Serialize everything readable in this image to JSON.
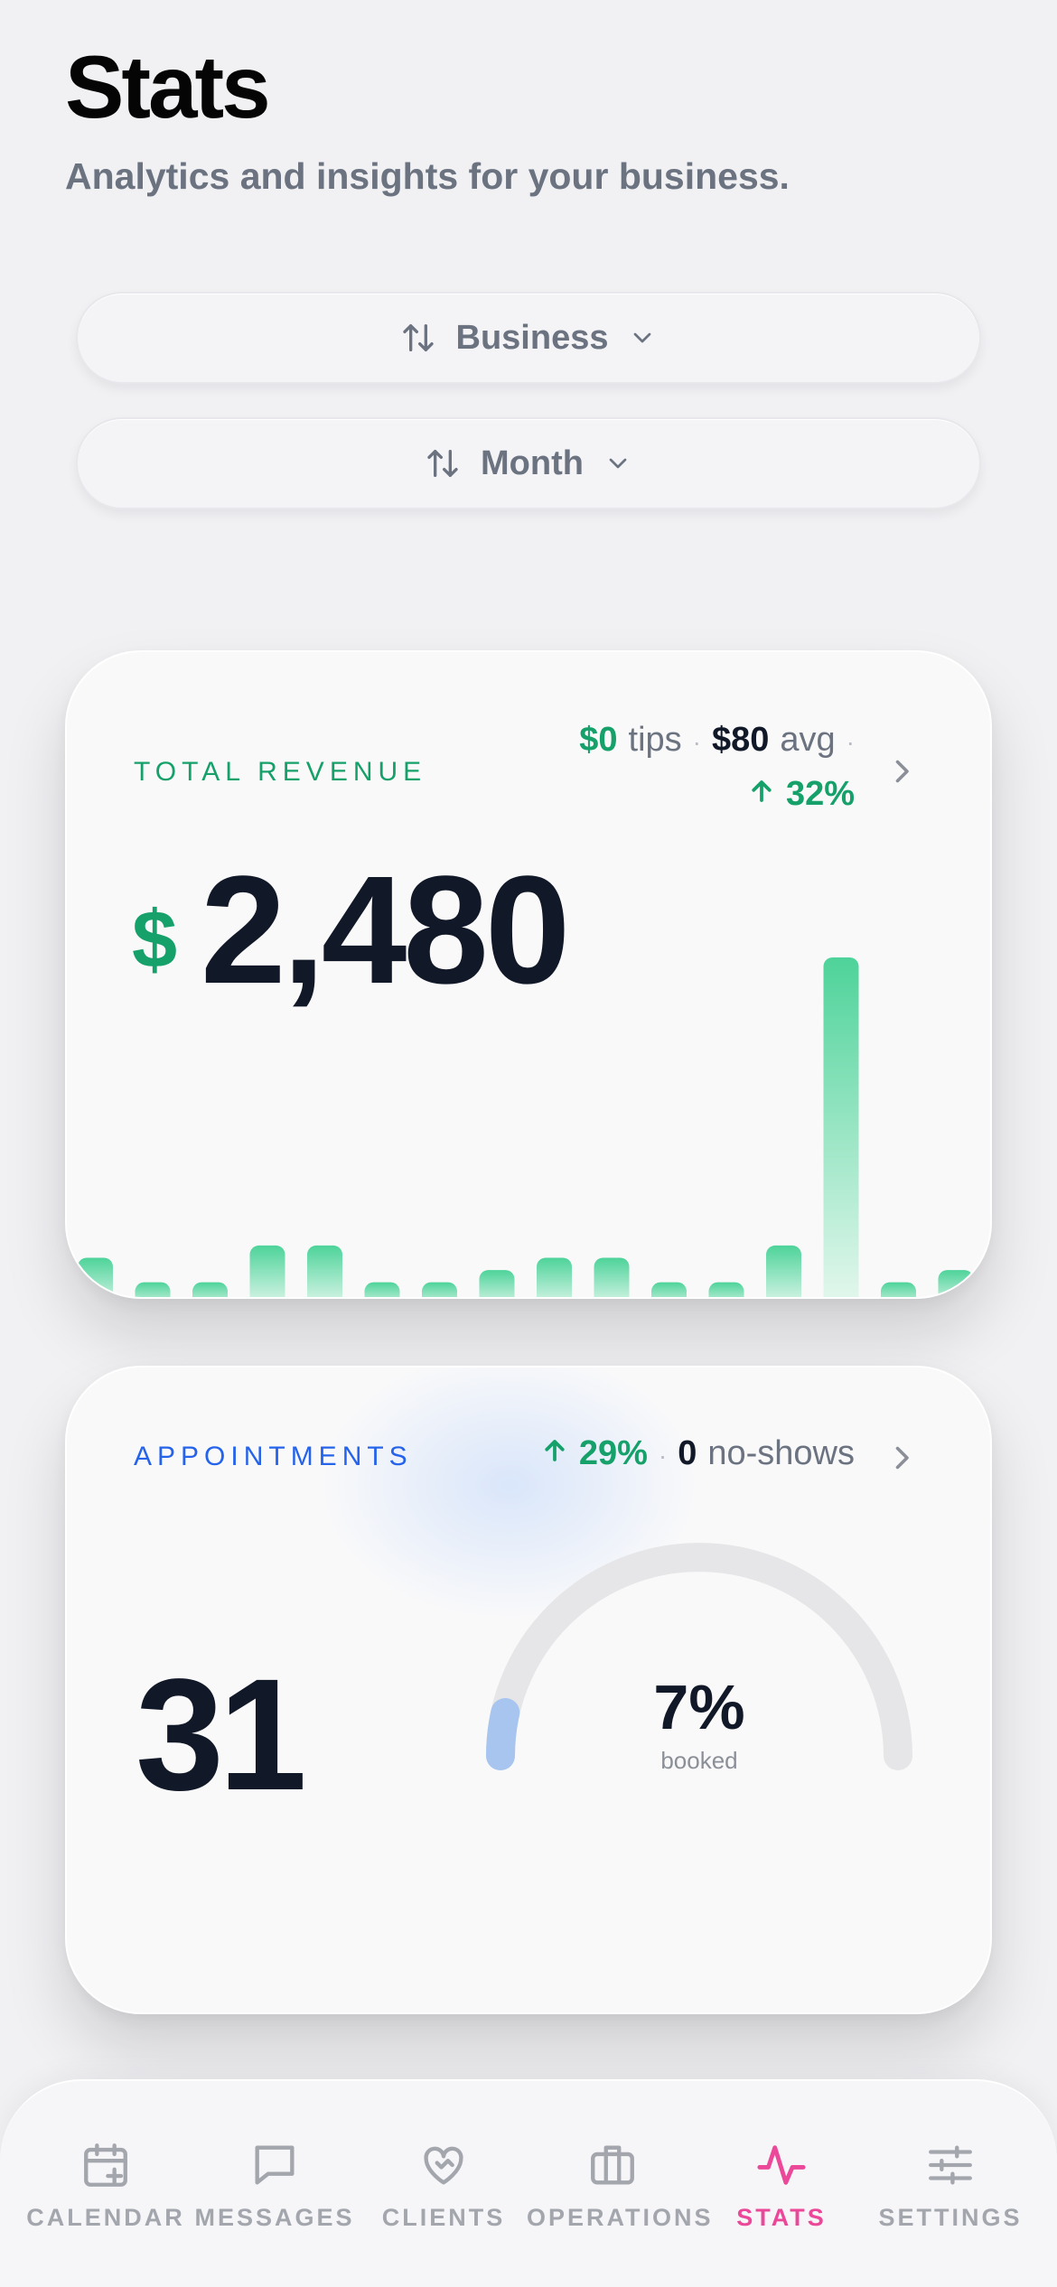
{
  "header": {
    "title": "Stats",
    "subtitle": "Analytics and insights for your business."
  },
  "filters": {
    "business": {
      "label": "Business",
      "icon": "sort-arrows-icon"
    },
    "period": {
      "label": "Month",
      "icon": "sort-arrows-icon"
    }
  },
  "revenue": {
    "label": "TOTAL REVENUE",
    "tips_value": "$0",
    "tips_label": "tips",
    "avg_value": "$80",
    "avg_label": "avg",
    "change": "32%",
    "currency": "$",
    "total": "2,480",
    "bar_values": [
      70,
      30,
      30,
      90,
      90,
      30,
      30,
      50,
      70,
      70,
      30,
      30,
      90,
      560,
      30,
      50
    ],
    "accent_color": "#16a06a",
    "bar_color": "#4ed39a"
  },
  "appointments": {
    "label": "APPOINTMENTS",
    "change": "29%",
    "noshows_value": "0",
    "noshows_label": "no-shows",
    "count": "31",
    "booked_percent": 7,
    "booked_display": "7%",
    "booked_label": "booked",
    "accent_color": "#2563eb",
    "gauge_fill_color": "#a8c5f0",
    "gauge_track_color": "#e6e6e8"
  },
  "nav": {
    "items": [
      {
        "label": "CALENDAR",
        "icon": "calendar-plus-icon",
        "active": false
      },
      {
        "label": "MESSAGES",
        "icon": "message-bubble-icon",
        "active": false
      },
      {
        "label": "CLIENTS",
        "icon": "heart-handshake-icon",
        "active": false
      },
      {
        "label": "OPERATIONS",
        "icon": "briefcase-icon",
        "active": false
      },
      {
        "label": "STATS",
        "icon": "activity-pulse-icon",
        "active": true
      },
      {
        "label": "SETTINGS",
        "icon": "sliders-icon",
        "active": false
      }
    ],
    "active_color": "#ec4899",
    "inactive_color": "#a3a6ad"
  }
}
